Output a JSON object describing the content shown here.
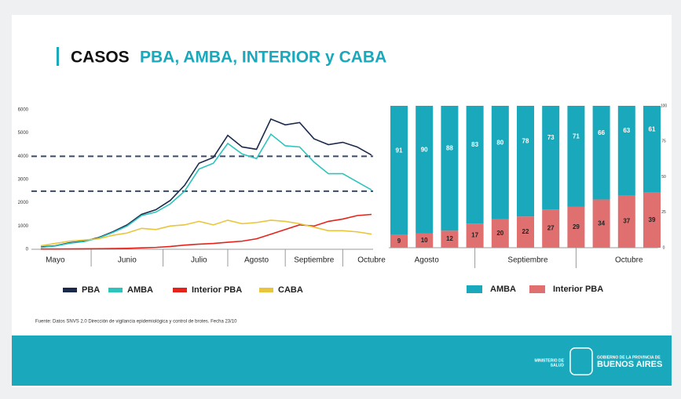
{
  "header": {
    "title_dark": "CASOS",
    "title_accent": "PBA, AMBA, INTERIOR y CABA"
  },
  "chart_data": [
    {
      "type": "line",
      "categories": [
        null,
        "Mayo",
        null,
        null,
        null,
        null,
        "Junio",
        null,
        null,
        null,
        null,
        "Julio",
        null,
        null,
        null,
        "Agosto",
        null,
        null,
        null,
        "Septiembre",
        null,
        null,
        null,
        "Octubre"
      ],
      "series": [
        {
          "name": "PBA",
          "color": "#1b2a4a",
          "values": [
            100,
            150,
            280,
            350,
            500,
            750,
            1050,
            1500,
            1700,
            2100,
            2750,
            3700,
            3950,
            4900,
            4400,
            4300,
            5600,
            5350,
            5450,
            4750,
            4500,
            4600,
            4400,
            4050
          ]
        },
        {
          "name": "AMBA",
          "color": "#2cc4bd",
          "values": [
            80,
            140,
            260,
            330,
            480,
            720,
            1000,
            1450,
            1600,
            1950,
            2500,
            3450,
            3700,
            4550,
            4100,
            3900,
            4950,
            4450,
            4400,
            3750,
            3250,
            3250,
            2900,
            2550
          ]
        },
        {
          "name": "Interior PBA",
          "color": "#e5231b",
          "values": [
            10,
            10,
            15,
            20,
            25,
            30,
            40,
            60,
            80,
            120,
            180,
            220,
            250,
            300,
            350,
            450,
            650,
            850,
            1050,
            1000,
            1200,
            1300,
            1450,
            1500
          ]
        },
        {
          "name": "CABA",
          "color": "#e8c53a",
          "values": [
            150,
            250,
            350,
            400,
            450,
            600,
            700,
            900,
            850,
            1000,
            1050,
            1200,
            1050,
            1250,
            1100,
            1150,
            1250,
            1200,
            1100,
            950,
            800,
            800,
            750,
            650
          ]
        }
      ],
      "ylim": [
        0,
        6000
      ],
      "yticks": [
        0,
        1000,
        2000,
        3000,
        4000,
        5000,
        6000
      ],
      "reference_lines": [
        4000,
        2500
      ]
    },
    {
      "type": "stacked_bar",
      "categories": [
        null,
        "Agosto",
        null,
        null,
        null,
        "Septiembre",
        null,
        null,
        null,
        "Octubre",
        null
      ],
      "series": [
        {
          "name": "AMBA",
          "color": "#1aa9bc",
          "values": [
            91,
            90,
            88,
            83,
            80,
            78,
            73,
            71,
            66,
            63,
            61
          ]
        },
        {
          "name": "Interior PBA",
          "color": "#e07070",
          "values": [
            9,
            10,
            12,
            17,
            20,
            22,
            27,
            29,
            34,
            37,
            39
          ]
        }
      ],
      "ylim": [
        0,
        100
      ],
      "yticks": [
        0,
        25,
        50,
        75,
        100
      ]
    }
  ],
  "source": "Fuente: Datos SNVS 2.0 Dirección de vigilancia epidemiológica y control de brotes. Fecha 23/10",
  "footer": {
    "ministry": [
      "MINISTERIO DE",
      "SALUD"
    ],
    "gov": "GOBIERNO DE LA PROVINCIA DE",
    "province": "BUENOS AIRES"
  }
}
